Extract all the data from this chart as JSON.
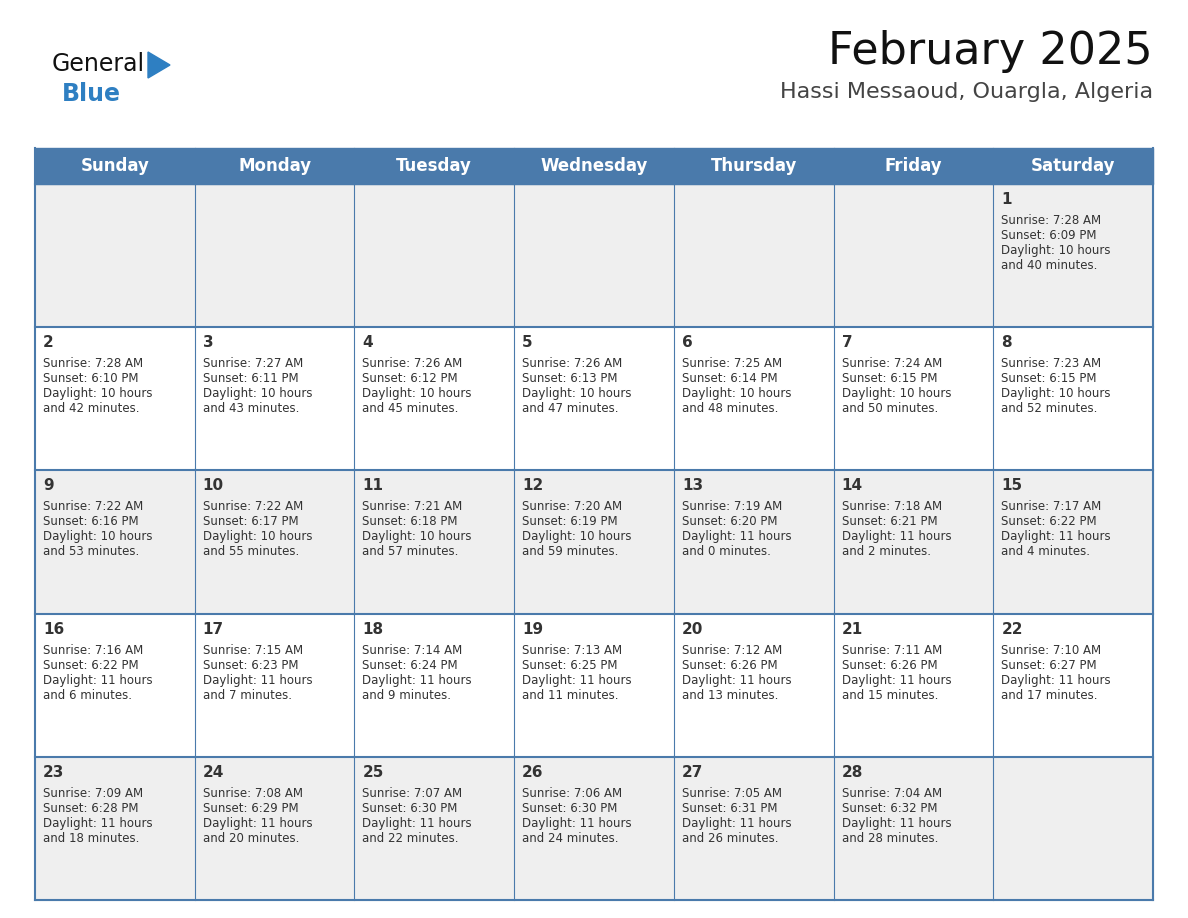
{
  "title": "February 2025",
  "subtitle": "Hassi Messaoud, Ouargla, Algeria",
  "days_of_week": [
    "Sunday",
    "Monday",
    "Tuesday",
    "Wednesday",
    "Thursday",
    "Friday",
    "Saturday"
  ],
  "header_bg": "#4a7aab",
  "header_text": "#ffffff",
  "row_bg_odd": "#efefef",
  "row_bg_even": "#ffffff",
  "cell_text": "#333333",
  "border_color": "#4a7aab",
  "title_color": "#111111",
  "subtitle_color": "#444444",
  "logo_general_color": "#111111",
  "logo_blue_color": "#2e7fc2",
  "day_num_fontsize": 11,
  "cell_fontsize": 8.5,
  "header_fontsize": 12,
  "title_fontsize": 32,
  "subtitle_fontsize": 16,
  "calendar_data": [
    [
      {
        "day": "",
        "sunrise": "",
        "sunset": "",
        "daylight": ""
      },
      {
        "day": "",
        "sunrise": "",
        "sunset": "",
        "daylight": ""
      },
      {
        "day": "",
        "sunrise": "",
        "sunset": "",
        "daylight": ""
      },
      {
        "day": "",
        "sunrise": "",
        "sunset": "",
        "daylight": ""
      },
      {
        "day": "",
        "sunrise": "",
        "sunset": "",
        "daylight": ""
      },
      {
        "day": "",
        "sunrise": "",
        "sunset": "",
        "daylight": ""
      },
      {
        "day": "1",
        "sunrise": "7:28 AM",
        "sunset": "6:09 PM",
        "daylight": "10 hours\nand 40 minutes."
      }
    ],
    [
      {
        "day": "2",
        "sunrise": "7:28 AM",
        "sunset": "6:10 PM",
        "daylight": "10 hours\nand 42 minutes."
      },
      {
        "day": "3",
        "sunrise": "7:27 AM",
        "sunset": "6:11 PM",
        "daylight": "10 hours\nand 43 minutes."
      },
      {
        "day": "4",
        "sunrise": "7:26 AM",
        "sunset": "6:12 PM",
        "daylight": "10 hours\nand 45 minutes."
      },
      {
        "day": "5",
        "sunrise": "7:26 AM",
        "sunset": "6:13 PM",
        "daylight": "10 hours\nand 47 minutes."
      },
      {
        "day": "6",
        "sunrise": "7:25 AM",
        "sunset": "6:14 PM",
        "daylight": "10 hours\nand 48 minutes."
      },
      {
        "day": "7",
        "sunrise": "7:24 AM",
        "sunset": "6:15 PM",
        "daylight": "10 hours\nand 50 minutes."
      },
      {
        "day": "8",
        "sunrise": "7:23 AM",
        "sunset": "6:15 PM",
        "daylight": "10 hours\nand 52 minutes."
      }
    ],
    [
      {
        "day": "9",
        "sunrise": "7:22 AM",
        "sunset": "6:16 PM",
        "daylight": "10 hours\nand 53 minutes."
      },
      {
        "day": "10",
        "sunrise": "7:22 AM",
        "sunset": "6:17 PM",
        "daylight": "10 hours\nand 55 minutes."
      },
      {
        "day": "11",
        "sunrise": "7:21 AM",
        "sunset": "6:18 PM",
        "daylight": "10 hours\nand 57 minutes."
      },
      {
        "day": "12",
        "sunrise": "7:20 AM",
        "sunset": "6:19 PM",
        "daylight": "10 hours\nand 59 minutes."
      },
      {
        "day": "13",
        "sunrise": "7:19 AM",
        "sunset": "6:20 PM",
        "daylight": "11 hours\nand 0 minutes."
      },
      {
        "day": "14",
        "sunrise": "7:18 AM",
        "sunset": "6:21 PM",
        "daylight": "11 hours\nand 2 minutes."
      },
      {
        "day": "15",
        "sunrise": "7:17 AM",
        "sunset": "6:22 PM",
        "daylight": "11 hours\nand 4 minutes."
      }
    ],
    [
      {
        "day": "16",
        "sunrise": "7:16 AM",
        "sunset": "6:22 PM",
        "daylight": "11 hours\nand 6 minutes."
      },
      {
        "day": "17",
        "sunrise": "7:15 AM",
        "sunset": "6:23 PM",
        "daylight": "11 hours\nand 7 minutes."
      },
      {
        "day": "18",
        "sunrise": "7:14 AM",
        "sunset": "6:24 PM",
        "daylight": "11 hours\nand 9 minutes."
      },
      {
        "day": "19",
        "sunrise": "7:13 AM",
        "sunset": "6:25 PM",
        "daylight": "11 hours\nand 11 minutes."
      },
      {
        "day": "20",
        "sunrise": "7:12 AM",
        "sunset": "6:26 PM",
        "daylight": "11 hours\nand 13 minutes."
      },
      {
        "day": "21",
        "sunrise": "7:11 AM",
        "sunset": "6:26 PM",
        "daylight": "11 hours\nand 15 minutes."
      },
      {
        "day": "22",
        "sunrise": "7:10 AM",
        "sunset": "6:27 PM",
        "daylight": "11 hours\nand 17 minutes."
      }
    ],
    [
      {
        "day": "23",
        "sunrise": "7:09 AM",
        "sunset": "6:28 PM",
        "daylight": "11 hours\nand 18 minutes."
      },
      {
        "day": "24",
        "sunrise": "7:08 AM",
        "sunset": "6:29 PM",
        "daylight": "11 hours\nand 20 minutes."
      },
      {
        "day": "25",
        "sunrise": "7:07 AM",
        "sunset": "6:30 PM",
        "daylight": "11 hours\nand 22 minutes."
      },
      {
        "day": "26",
        "sunrise": "7:06 AM",
        "sunset": "6:30 PM",
        "daylight": "11 hours\nand 24 minutes."
      },
      {
        "day": "27",
        "sunrise": "7:05 AM",
        "sunset": "6:31 PM",
        "daylight": "11 hours\nand 26 minutes."
      },
      {
        "day": "28",
        "sunrise": "7:04 AM",
        "sunset": "6:32 PM",
        "daylight": "11 hours\nand 28 minutes."
      },
      {
        "day": "",
        "sunrise": "",
        "sunset": "",
        "daylight": ""
      }
    ]
  ]
}
